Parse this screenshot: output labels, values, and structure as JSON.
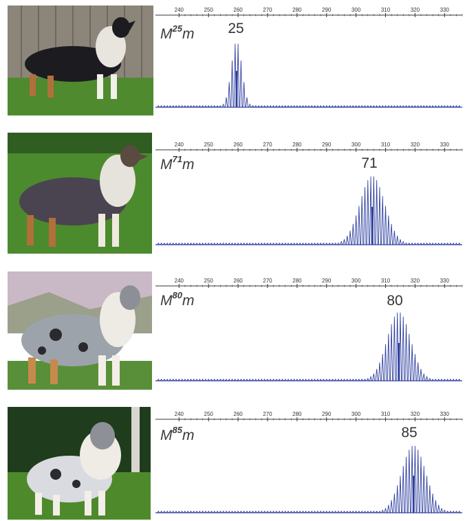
{
  "colors": {
    "trace": "#2f3f9f",
    "trace_light": "#5a6ac8",
    "axis": "#333333"
  },
  "chart_data": [
    {
      "type": "line",
      "genotype": {
        "base": "M",
        "sup": "25",
        "suffix": "m"
      },
      "peak_label": "25",
      "peak_x": 259.5,
      "xlim": [
        232,
        336
      ],
      "xticks": [
        240,
        250,
        260,
        270,
        280,
        290,
        300,
        310,
        320,
        330
      ],
      "xtick_labels": [
        "240",
        "250",
        "260",
        "270",
        "280",
        "290",
        "300",
        "310",
        "320",
        "330"
      ],
      "grid": false,
      "photo": "black-tricolor-dog-icon"
    },
    {
      "type": "line",
      "genotype": {
        "base": "M",
        "sup": "71",
        "suffix": "m"
      },
      "peak_label": "71",
      "peak_x": 305.5,
      "xlim": [
        232,
        336
      ],
      "xticks": [
        240,
        250,
        260,
        270,
        280,
        290,
        300,
        310,
        320,
        330
      ],
      "xtick_labels": [
        "240",
        "250",
        "260",
        "270",
        "280",
        "290",
        "300",
        "310",
        "320",
        "330"
      ],
      "grid": false,
      "photo": "sable-tricolor-dog-icon"
    },
    {
      "type": "line",
      "genotype": {
        "base": "M",
        "sup": "80",
        "suffix": "m"
      },
      "peak_label": "80",
      "peak_x": 314.5,
      "xlim": [
        232,
        336
      ],
      "xticks": [
        240,
        250,
        260,
        270,
        280,
        290,
        300,
        310,
        320,
        330
      ],
      "xtick_labels": [
        "240",
        "250",
        "260",
        "270",
        "280",
        "290",
        "300",
        "310",
        "320",
        "330"
      ],
      "grid": false,
      "photo": "blue-merle-dog-icon"
    },
    {
      "type": "line",
      "genotype": {
        "base": "M",
        "sup": "85",
        "suffix": "m"
      },
      "peak_label": "85",
      "peak_x": 319.5,
      "xlim": [
        232,
        336
      ],
      "xticks": [
        240,
        250,
        260,
        270,
        280,
        290,
        300,
        310,
        320,
        330
      ],
      "xtick_labels": [
        "240",
        "250",
        "260",
        "270",
        "280",
        "290",
        "300",
        "310",
        "320",
        "330"
      ],
      "grid": false,
      "photo": "blue-merle-sheltie-dog-icon"
    }
  ]
}
